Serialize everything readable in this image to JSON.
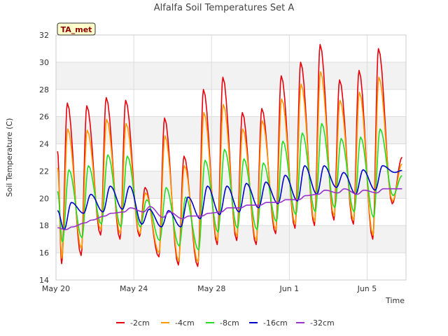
{
  "chart_data": {
    "type": "line",
    "title": "Alfalfa Soil Temperatures Set A",
    "xlabel": "Time",
    "ylabel": "Soil Temperature (C)",
    "badge": "TA_met",
    "xlim": [
      "2023-05-20",
      "2023-06-07"
    ],
    "ylim": [
      14,
      32
    ],
    "yticks": [
      14,
      16,
      18,
      20,
      22,
      24,
      26,
      28,
      30,
      32
    ],
    "xticks": [
      {
        "date": "2023-05-20",
        "label": "May 20"
      },
      {
        "date": "2023-05-24",
        "label": "May 24"
      },
      {
        "date": "2023-05-28",
        "label": "May 28"
      },
      {
        "date": "2023-06-01",
        "label": "Jun 1"
      },
      {
        "date": "2023-06-05",
        "label": "Jun 5"
      }
    ],
    "grid": true,
    "legend_position": "bottom",
    "days": [
      "2023-05-20",
      "2023-05-21",
      "2023-05-22",
      "2023-05-23",
      "2023-05-24",
      "2023-05-25",
      "2023-05-26",
      "2023-05-27",
      "2023-05-28",
      "2023-05-29",
      "2023-05-30",
      "2023-05-31",
      "2023-06-01",
      "2023-06-02",
      "2023-06-03",
      "2023-06-04",
      "2023-06-05",
      "2023-06-06"
    ],
    "series": [
      {
        "name": "-2cm",
        "color": "#e8000b",
        "min": [
          15.2,
          15.8,
          17.3,
          17.0,
          17.2,
          15.7,
          15.1,
          15.0,
          16.6,
          16.9,
          16.6,
          17.4,
          17.8,
          18.0,
          18.4,
          18.1,
          17.0,
          19.6
        ],
        "max": [
          27.0,
          26.8,
          27.4,
          27.2,
          20.8,
          25.9,
          23.1,
          28.0,
          28.9,
          26.3,
          26.6,
          29.0,
          30.0,
          31.3,
          28.7,
          29.4,
          31.0,
          null
        ]
      },
      {
        "name": "-4cm",
        "color": "#ff9900",
        "min": [
          15.6,
          16.3,
          17.7,
          17.4,
          17.4,
          16.0,
          15.4,
          15.3,
          16.9,
          17.2,
          16.9,
          17.7,
          18.1,
          18.3,
          18.7,
          18.4,
          17.3,
          19.8
        ],
        "max": [
          25.1,
          25.0,
          25.8,
          25.5,
          20.4,
          24.6,
          22.4,
          26.3,
          26.9,
          25.1,
          25.7,
          27.3,
          28.4,
          29.3,
          27.2,
          27.8,
          28.9,
          null
        ]
      },
      {
        "name": "-8cm",
        "color": "#22dd22",
        "min": [
          16.8,
          17.1,
          18.1,
          17.9,
          17.9,
          16.9,
          16.5,
          16.2,
          17.5,
          17.8,
          17.7,
          18.3,
          18.8,
          19.0,
          19.3,
          19.0,
          18.6,
          20.2
        ],
        "max": [
          22.1,
          22.4,
          23.2,
          23.1,
          19.9,
          20.8,
          20.1,
          22.8,
          23.6,
          22.9,
          22.6,
          24.2,
          24.8,
          25.5,
          24.4,
          24.5,
          25.1,
          null
        ]
      },
      {
        "name": "-16cm",
        "color": "#0000cc",
        "min": [
          17.7,
          18.9,
          19.0,
          19.2,
          18.1,
          17.9,
          17.9,
          18.5,
          18.8,
          19.0,
          19.3,
          19.6,
          19.8,
          20.3,
          20.8,
          20.3,
          20.6,
          21.9
        ],
        "max": [
          19.7,
          20.3,
          20.9,
          20.9,
          19.2,
          19.1,
          20.1,
          20.9,
          20.9,
          21.1,
          21.2,
          21.7,
          22.4,
          22.4,
          21.9,
          22.1,
          22.4,
          null
        ]
      },
      {
        "name": "-32cm",
        "color": "#9933cc",
        "min": [
          17.7,
          18.2,
          18.7,
          19.0,
          19.0,
          18.6,
          18.5,
          18.7,
          19.0,
          19.3,
          19.5,
          19.7,
          19.9,
          20.3,
          20.4,
          20.3,
          20.4,
          20.7
        ],
        "max": [
          17.9,
          18.4,
          18.9,
          19.3,
          19.4,
          19.0,
          18.7,
          18.9,
          19.3,
          19.5,
          19.7,
          19.9,
          20.2,
          20.6,
          20.7,
          20.6,
          20.7,
          null
        ]
      }
    ]
  }
}
